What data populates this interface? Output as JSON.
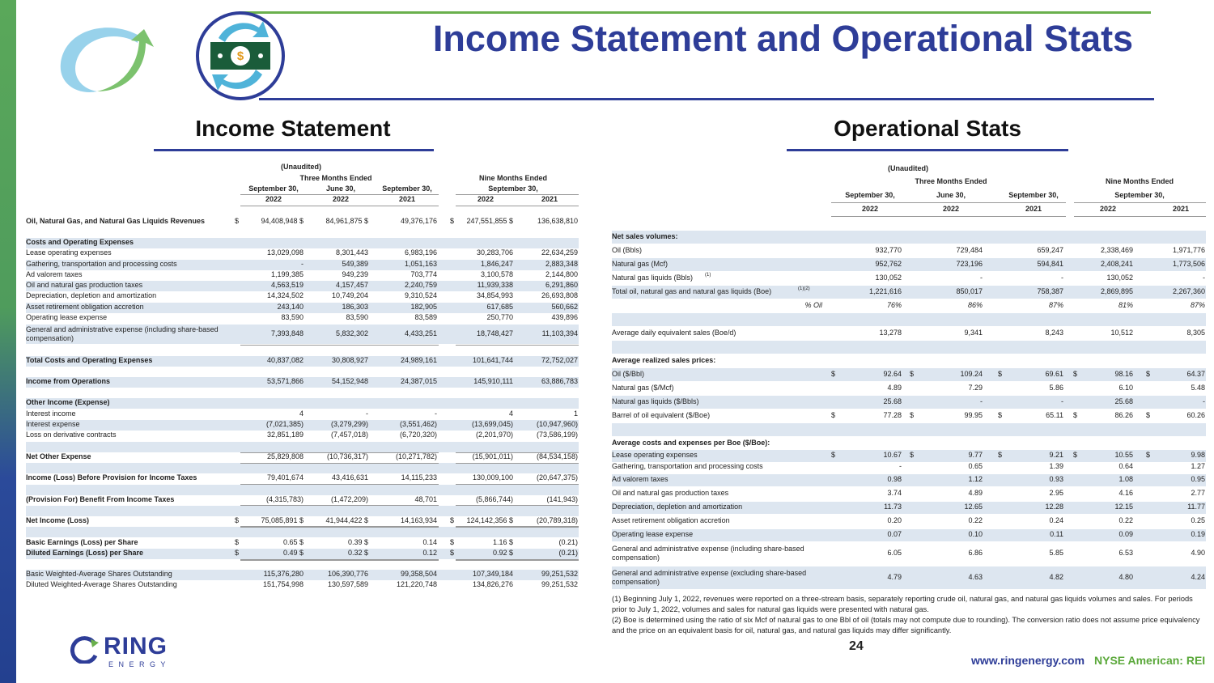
{
  "header": {
    "title": "Income Statement and Operational Stats"
  },
  "colors": {
    "brand_blue": "#2e3d98",
    "brand_green": "#6ab04c",
    "row_band": "#dde6f0"
  },
  "income_statement": {
    "title": "Income Statement",
    "unaudited": "(Unaudited)",
    "three_months": "Three Months Ended",
    "nine_months": "Nine Months Ended",
    "periods": [
      "September 30,",
      "June 30,",
      "September 30,",
      "September 30,"
    ],
    "years": [
      "2022",
      "2022",
      "2021",
      "2022",
      "2021"
    ],
    "rows": [
      {
        "label": "Oil, Natural Gas, and Natural Gas Liquids Revenues",
        "bold": true,
        "d1": "$",
        "d4": "$",
        "values": [
          "94,408,948 $",
          "84,961,875 $",
          "49,376,176",
          "247,551,855 $",
          "136,638,810"
        ]
      },
      {
        "label": "Costs and Operating Expenses",
        "bold": true,
        "values": []
      },
      {
        "label": "Lease operating expenses",
        "values": [
          "13,029,098",
          "8,301,443",
          "6,983,196",
          "30,283,706",
          "22,634,259"
        ]
      },
      {
        "label": "Gathering, transportation and processing costs",
        "values": [
          "-",
          "549,389",
          "1,051,163",
          "1,846,247",
          "2,883,348"
        ]
      },
      {
        "label": "Ad valorem taxes",
        "values": [
          "1,199,385",
          "949,239",
          "703,774",
          "3,100,578",
          "2,144,800"
        ]
      },
      {
        "label": "Oil and natural gas production taxes",
        "values": [
          "4,563,519",
          "4,157,457",
          "2,240,759",
          "11,939,338",
          "6,291,860"
        ]
      },
      {
        "label": "Depreciation, depletion and amortization",
        "values": [
          "14,324,502",
          "10,749,204",
          "9,310,524",
          "34,854,993",
          "26,693,808"
        ]
      },
      {
        "label": "Asset retirement obligation accretion",
        "values": [
          "243,140",
          "186,303",
          "182,905",
          "617,685",
          "560,662"
        ]
      },
      {
        "label": "Operating lease expense",
        "values": [
          "83,590",
          "83,590",
          "83,589",
          "250,770",
          "439,896"
        ]
      },
      {
        "label": "General and administrative expense (including share-based compensation)",
        "values": [
          "7,393,848",
          "5,832,302",
          "4,433,251",
          "18,748,427",
          "11,103,394"
        ]
      },
      {
        "label": "Total Costs and Operating Expenses",
        "bold": true,
        "values": [
          "40,837,082",
          "30,808,927",
          "24,989,161",
          "101,641,744",
          "72,752,027"
        ]
      },
      {
        "label": "Income from Operations",
        "bold": true,
        "values": [
          "53,571,866",
          "54,152,948",
          "24,387,015",
          "145,910,111",
          "63,886,783"
        ]
      },
      {
        "label": "Other Income (Expense)",
        "bold": true,
        "values": []
      },
      {
        "label": "Interest income",
        "values": [
          "4",
          "-",
          "-",
          "4",
          "1"
        ]
      },
      {
        "label": "Interest expense",
        "values": [
          "(7,021,385)",
          "(3,279,299)",
          "(3,551,462)",
          "(13,699,045)",
          "(10,947,960)"
        ]
      },
      {
        "label": "Loss on derivative contracts",
        "values": [
          "32,851,189",
          "(7,457,018)",
          "(6,720,320)",
          "(2,201,970)",
          "(73,586,199)"
        ]
      },
      {
        "label": "Net Other Expense",
        "bold": true,
        "values": [
          "25,829,808",
          "(10,736,317)",
          "(10,271,782)",
          "(15,901,011)",
          "(84,534,158)"
        ]
      },
      {
        "label": "Income (Loss) Before Provision for Income Taxes",
        "bold": true,
        "values": [
          "79,401,674",
          "43,416,631",
          "14,115,233",
          "130,009,100",
          "(20,647,375)"
        ]
      },
      {
        "label": "(Provision For) Benefit From Income Taxes",
        "bold": true,
        "values": [
          "(4,315,783)",
          "(1,472,209)",
          "48,701",
          "(5,866,744)",
          "(141,943)"
        ]
      },
      {
        "label": "Net Income (Loss)",
        "bold": true,
        "d1": "$",
        "d4": "$",
        "values": [
          "75,085,891 $",
          "41,944,422 $",
          "14,163,934",
          "124,142,356 $",
          "(20,789,318)"
        ]
      },
      {
        "label": "Basic Earnings (Loss) per Share",
        "bold": true,
        "d1": "$",
        "d4": "$",
        "values": [
          "0.65 $",
          "0.39 $",
          "0.14",
          "1.16 $",
          "(0.21)"
        ]
      },
      {
        "label": "Diluted Earnings (Loss) per Share",
        "bold": true,
        "d1": "$",
        "d4": "$",
        "values": [
          "0.49 $",
          "0.32 $",
          "0.12",
          "0.92 $",
          "(0.21)"
        ]
      },
      {
        "label": "Basic Weighted-Average Shares Outstanding",
        "values": [
          "115,376,280",
          "106,390,776",
          "99,358,504",
          "107,349,184",
          "99,251,532"
        ]
      },
      {
        "label": "Diluted Weighted-Average Shares Outstanding",
        "values": [
          "151,754,998",
          "130,597,589",
          "121,220,748",
          "134,826,276",
          "99,251,532"
        ]
      }
    ]
  },
  "operational_stats": {
    "title": "Operational Stats",
    "unaudited": "(Unaudited)",
    "three_months": "Three Months Ended",
    "nine_months": "Nine Months Ended",
    "periods": [
      "September 30,",
      "June 30,",
      "September 30,",
      "September 30,"
    ],
    "years": [
      "2022",
      "2022",
      "2021",
      "2022",
      "2021"
    ],
    "rows": [
      {
        "label": "Net sales volumes:",
        "bold": true,
        "values": []
      },
      {
        "label": "Oil  (Bbls)",
        "values": [
          "932,770",
          "729,484",
          "659,247",
          "2,338,469",
          "1,971,776"
        ]
      },
      {
        "label": "Natural gas (Mcf)",
        "values": [
          "952,762",
          "723,196",
          "594,841",
          "2,408,241",
          "1,773,506"
        ]
      },
      {
        "label": "Natural gas liquids (Bbls)",
        "sup": "(1)",
        "values": [
          "130,052",
          "-",
          "-",
          "130,052",
          "-"
        ]
      },
      {
        "label": "Total oil, natural gas and natural gas liquids (Boe)",
        "sup": "(1)(2)",
        "values": [
          "1,221,616",
          "850,017",
          "758,387",
          "2,869,895",
          "2,267,360"
        ]
      },
      {
        "label": "% Oil",
        "italic": true,
        "values": [
          "76%",
          "86%",
          "87%",
          "81%",
          "87%"
        ]
      },
      {
        "label": "Average daily equivalent sales (Boe/d)",
        "values": [
          "13,278",
          "9,341",
          "8,243",
          "10,512",
          "8,305"
        ]
      },
      {
        "label": "Average realized sales prices:",
        "bold": true,
        "values": []
      },
      {
        "label": "Oil ($/Bbl)",
        "dollars": true,
        "values": [
          "92.64",
          "109.24",
          "69.61",
          "98.16",
          "64.37"
        ]
      },
      {
        "label": "Natural gas ($/Mcf)",
        "values": [
          "4.89",
          "7.29",
          "5.86",
          "6.10",
          "5.48"
        ]
      },
      {
        "label": "Natural gas liquids ($/Bbls)",
        "values": [
          "25.68",
          "-",
          "-",
          "25.68",
          "-"
        ]
      },
      {
        "label": "Barrel of oil equivalent ($/Boe)",
        "dollars": true,
        "values": [
          "77.28",
          "99.95",
          "65.11",
          "86.26",
          "60.26"
        ]
      },
      {
        "label": "Average costs and expenses per Boe ($/Boe):",
        "bold": true,
        "values": []
      },
      {
        "label": "Lease operating expenses",
        "dollars": true,
        "values": [
          "10.67",
          "9.77",
          "9.21",
          "10.55",
          "9.98"
        ]
      },
      {
        "label": "Gathering, transportation and processing costs",
        "values": [
          "-",
          "0.65",
          "1.39",
          "0.64",
          "1.27"
        ]
      },
      {
        "label": "Ad valorem taxes",
        "values": [
          "0.98",
          "1.12",
          "0.93",
          "1.08",
          "0.95"
        ]
      },
      {
        "label": "Oil and natural gas production taxes",
        "values": [
          "3.74",
          "4.89",
          "2.95",
          "4.16",
          "2.77"
        ]
      },
      {
        "label": "Depreciation, depletion and amortization",
        "values": [
          "11.73",
          "12.65",
          "12.28",
          "12.15",
          "11.77"
        ]
      },
      {
        "label": "Asset retirement obligation accretion",
        "values": [
          "0.20",
          "0.22",
          "0.24",
          "0.22",
          "0.25"
        ]
      },
      {
        "label": "Operating lease expense",
        "values": [
          "0.07",
          "0.10",
          "0.11",
          "0.09",
          "0.19"
        ]
      },
      {
        "label": "General and administrative expense (including share-based compensation)",
        "values": [
          "6.05",
          "6.86",
          "5.85",
          "6.53",
          "4.90"
        ]
      },
      {
        "label": "General and administrative expense (excluding share-based compensation)",
        "values": [
          "4.79",
          "4.63",
          "4.82",
          "4.80",
          "4.24"
        ]
      }
    ],
    "footnotes": [
      "(1) Beginning July 1, 2022, revenues were reported on a three-stream basis, separately reporting crude oil, natural gas, and natural gas liquids volumes and sales. For periods prior to July 1, 2022, volumes and sales for natural gas liquids were presented with natural gas.",
      "(2) Boe is determined using the ratio of six Mcf of natural gas to one Bbl of oil (totals may not compute due to rounding).  The conversion ratio does not assume price equivalency and the price on an equivalent basis for oil, natural gas, and natural gas liquids may differ significantly."
    ]
  },
  "footer": {
    "page_number": "24",
    "url": "www.ringenergy.com",
    "ticker": "NYSE American: REI",
    "logo_text": "RING",
    "logo_sub": "E N E R G Y"
  }
}
